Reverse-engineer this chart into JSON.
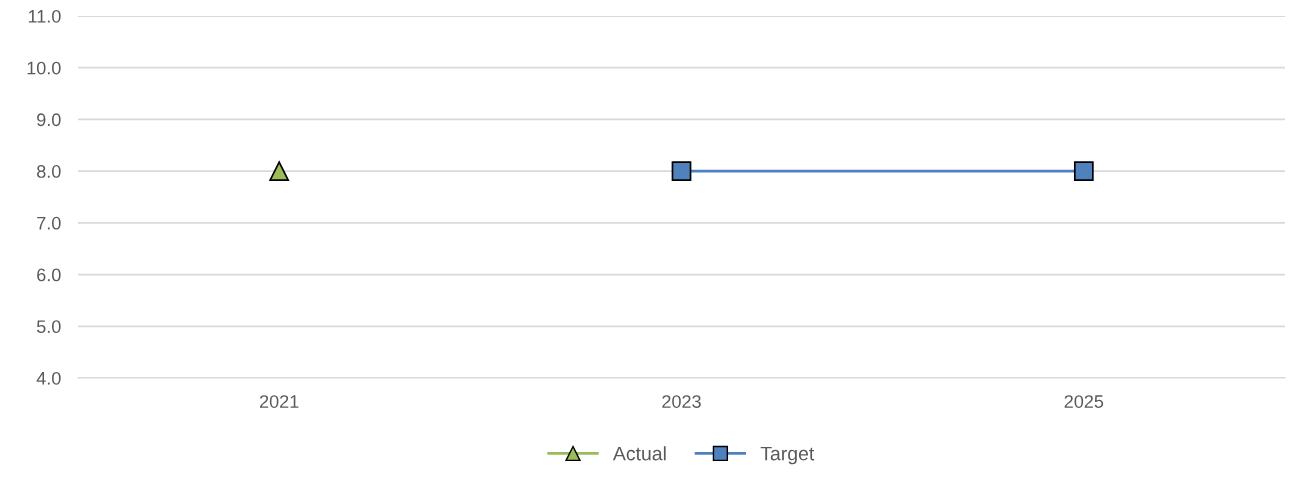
{
  "chart_data": {
    "type": "line",
    "categories": [
      "2021",
      "2023",
      "2025"
    ],
    "series": [
      {
        "name": "Actual",
        "color": "#9bbb59",
        "marker": "triangle",
        "values": [
          8.0,
          null,
          null
        ]
      },
      {
        "name": "Target",
        "color": "#4f81bd",
        "marker": "square",
        "values": [
          null,
          8.0,
          8.0
        ]
      }
    ],
    "ylim": [
      4,
      11
    ],
    "yticks": [
      {
        "value": 4,
        "label": "4.0"
      },
      {
        "value": 5,
        "label": "5.0"
      },
      {
        "value": 6,
        "label": "6.0"
      },
      {
        "value": 7,
        "label": "7.0"
      },
      {
        "value": 8,
        "label": "8.0"
      },
      {
        "value": 9,
        "label": "9.0"
      },
      {
        "value": 10,
        "label": "10.0"
      },
      {
        "value": 11,
        "label": "11.0"
      }
    ],
    "grid": "y",
    "legend": "bottom",
    "line_style": "solid"
  }
}
